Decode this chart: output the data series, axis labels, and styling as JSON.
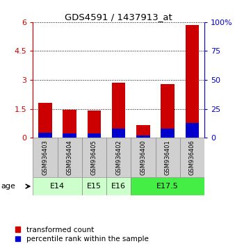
{
  "title": "GDS4591 / 1437913_at",
  "samples": [
    "GSM936403",
    "GSM936404",
    "GSM936405",
    "GSM936402",
    "GSM936400",
    "GSM936401",
    "GSM936406"
  ],
  "red_values": [
    1.8,
    1.45,
    1.42,
    2.85,
    0.65,
    2.8,
    5.85
  ],
  "blue_values": [
    0.27,
    0.23,
    0.22,
    0.47,
    0.1,
    0.47,
    0.77
  ],
  "age_groups": [
    {
      "label": "E14",
      "spans": [
        0,
        1
      ],
      "color": "#ccffcc"
    },
    {
      "label": "E15",
      "spans": [
        2
      ],
      "color": "#ccffcc"
    },
    {
      "label": "E16",
      "spans": [
        3
      ],
      "color": "#ccffcc"
    },
    {
      "label": "E17.5",
      "spans": [
        4,
        5,
        6
      ],
      "color": "#44ee44"
    }
  ],
  "ylim_left": [
    0,
    6
  ],
  "ylim_right": [
    0,
    100
  ],
  "yticks_left": [
    0,
    1.5,
    3.0,
    4.5,
    6.0
  ],
  "yticks_right": [
    0,
    25,
    50,
    75,
    100
  ],
  "ytick_labels_left": [
    "0",
    "1.5",
    "3",
    "4.5",
    "6"
  ],
  "ytick_labels_right": [
    "0",
    "25",
    "50",
    "75",
    "100%"
  ],
  "bar_color_red": "#cc0000",
  "bar_color_blue": "#0000cc",
  "bar_width": 0.55,
  "bg_color_sample": "#d0d0d0",
  "legend_red_label": "transformed count",
  "legend_blue_label": "percentile rank within the sample"
}
